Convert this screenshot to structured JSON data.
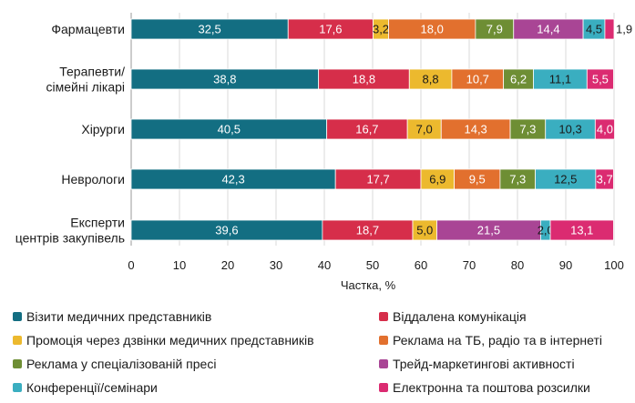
{
  "chart_data": {
    "type": "bar",
    "orientation": "horizontal",
    "stacked": true,
    "xlabel": "Частка, %",
    "xlim": [
      0,
      100
    ],
    "xticks": [
      0,
      10,
      20,
      30,
      40,
      50,
      60,
      70,
      80,
      90,
      100
    ],
    "legend_position": "bottom",
    "categories": [
      "Фармацевти",
      "Терапевти/ сімейні лікарі",
      "Хірурги",
      "Невроло­ги",
      "Експерти центрів закупівель"
    ],
    "category_lines": [
      [
        "Фармацевти"
      ],
      [
        "Терапевти/",
        "сімейні лікарі"
      ],
      [
        "Хірурги"
      ],
      [
        "Неврологи"
      ],
      [
        "Експерти",
        "центрів закупівель"
      ]
    ],
    "series": [
      {
        "name": "Візити медичних представників",
        "color": "#136e82",
        "text_color": "#ffffff",
        "values": [
          32.5,
          38.8,
          40.5,
          42.3,
          39.6
        ]
      },
      {
        "name": "Віддалена комунікація",
        "color": "#d62e4a",
        "text_color": "#ffffff",
        "values": [
          17.6,
          18.8,
          16.7,
          17.7,
          18.7
        ]
      },
      {
        "name": "Промоція через дзвінки медичних представників",
        "color": "#ecb92e",
        "text_color": "#1a1a1a",
        "values": [
          3.2,
          8.8,
          7.0,
          6.9,
          5.0
        ]
      },
      {
        "name": "Реклама на ТБ, радіо та в інтернеті",
        "color": "#e2702e",
        "text_color": "#ffffff",
        "values": [
          18.0,
          10.7,
          14.3,
          9.5,
          0
        ]
      },
      {
        "name": "Реклама у спеціалізованій пресі",
        "color": "#6e8e34",
        "text_color": "#ffffff",
        "values": [
          7.9,
          6.2,
          7.3,
          7.3,
          0
        ]
      },
      {
        "name": "Трейд-маркетингові активності",
        "color": "#a94595",
        "text_color": "#ffffff",
        "values": [
          14.4,
          0,
          0,
          0,
          21.5
        ]
      },
      {
        "name": "Конференції/семінари",
        "color": "#3aaec0",
        "text_color": "#1a1a1a",
        "values": [
          4.5,
          11.1,
          10.3,
          12.5,
          2.0
        ]
      },
      {
        "name": "Електронна та поштова розсилки",
        "color": "#db2b71",
        "text_color": "#ffffff",
        "values": [
          1.9,
          5.5,
          4.0,
          3.7,
          13.1
        ]
      }
    ]
  }
}
